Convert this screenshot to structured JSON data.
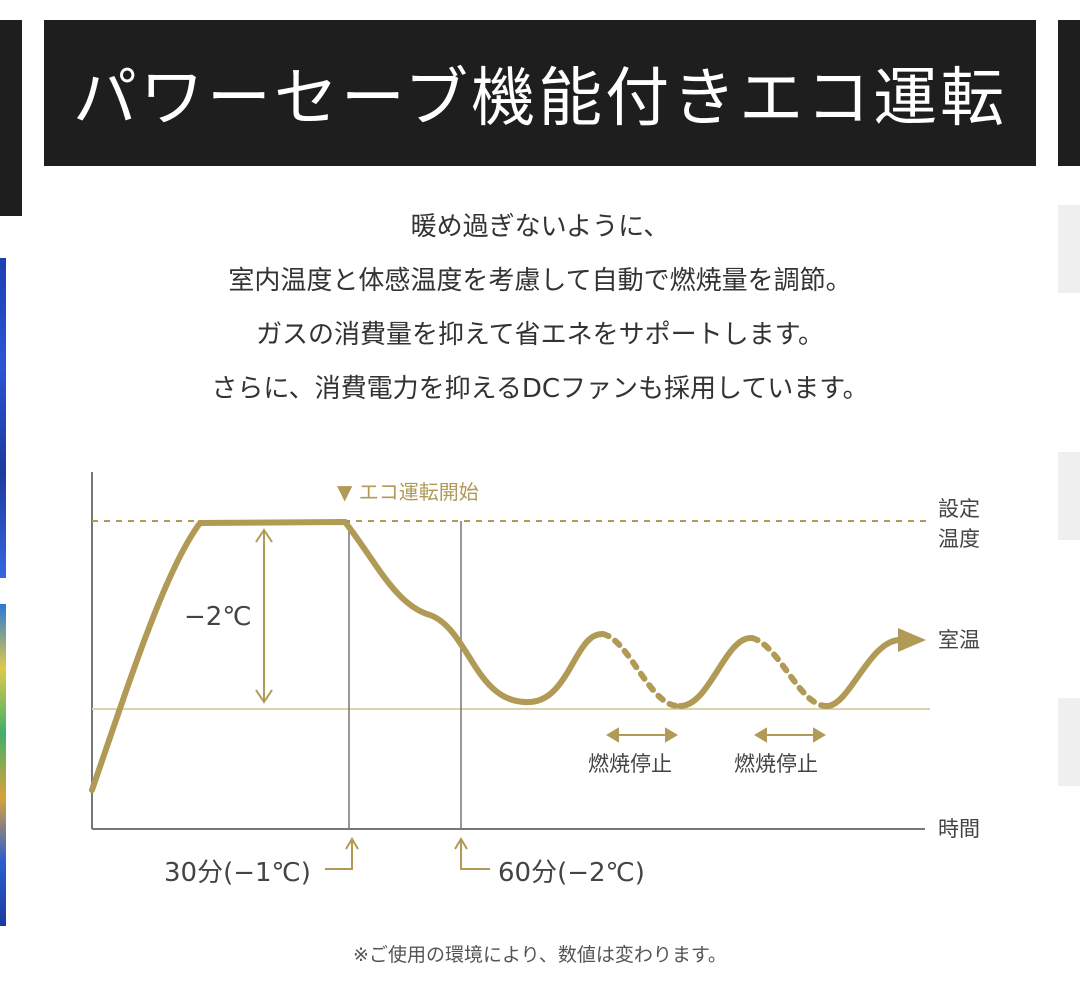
{
  "title": "パワーセーブ機能付きエコ運転",
  "description": [
    "暖め過ぎないように、",
    "室内温度と体感温度を考慮して自動で燃焼量を調節。",
    "ガスの消費量を抑えて省エネをサポートします。",
    "さらに、消費電力を抑えるDCファンも採用しています。"
  ],
  "diagram": {
    "eco_start_label": "▼ エコ運転開始",
    "set_temp_label": [
      "設定",
      "温度"
    ],
    "room_temp_label": "室温",
    "time_label": "時間",
    "delta_label": "−2℃",
    "stop_label_1": "燃焼停止",
    "stop_label_2": "燃焼停止",
    "marker_30": "30分(−1℃)",
    "marker_60": "60分(−2℃)",
    "colors": {
      "curve": "#b09a56",
      "axis": "#777777",
      "room_line": "#ddd3a8",
      "label": "#444444"
    }
  },
  "footnote": "※ご使用の環境により、数値は変わります。"
}
